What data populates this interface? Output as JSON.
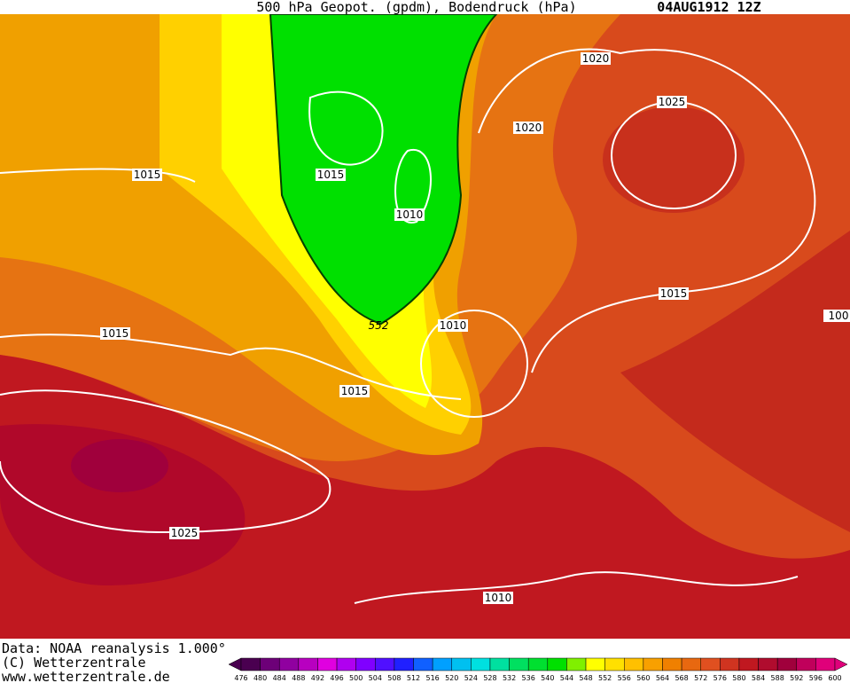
{
  "header": {
    "title": "500 hPa Geopot. (gpdm), Bodendruck (hPa)",
    "date": "04AUG1912 12Z"
  },
  "map": {
    "labels": [
      1020,
      1025,
      1020,
      1015,
      1015,
      1010,
      1015,
      100,
      1010,
      552,
      1015,
      1015,
      1025,
      1010
    ]
  },
  "footer": {
    "lines": [
      "Data: NOAA reanalysis 1.000°",
      "(C) Wetterzentrale",
      "www.wetterzentrale.de"
    ]
  },
  "colorbar": {
    "ticks": [
      476,
      480,
      484,
      488,
      492,
      496,
      500,
      504,
      508,
      512,
      516,
      520,
      524,
      528,
      532,
      536,
      540,
      544,
      548,
      552,
      556,
      560,
      564,
      568,
      572,
      576,
      580,
      584,
      588,
      592,
      596,
      600
    ]
  }
}
